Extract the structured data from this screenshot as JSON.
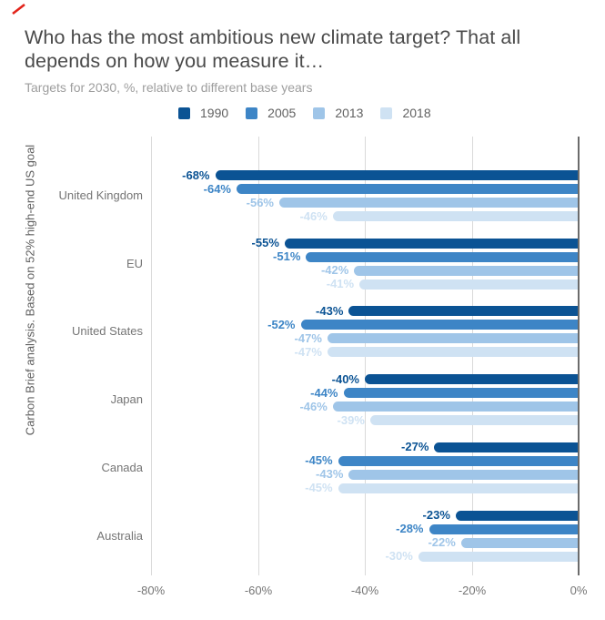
{
  "brand": {
    "slash_icon_color": "#e2231a"
  },
  "chart_data": {
    "type": "bar",
    "orientation": "horizontal",
    "title": "Who has the most ambitious new climate target? That all depends on how you measure it…",
    "subtitle": "Targets for 2030, %, relative to different base years",
    "ylabel": "Carbon Brief analysis. Based on 52% high-end US goal",
    "xlabel": "",
    "categories": [
      "United Kingdom",
      "EU",
      "United States",
      "Japan",
      "Canada",
      "Australia"
    ],
    "series": [
      {
        "name": "1990",
        "color": "#0b5394",
        "values": [
          -68,
          -55,
          -43,
          -40,
          -27,
          -23
        ]
      },
      {
        "name": "2005",
        "color": "#3d85c6",
        "values": [
          -64,
          -51,
          -52,
          -44,
          -45,
          -28
        ]
      },
      {
        "name": "2013",
        "color": "#9fc5e8",
        "values": [
          -56,
          -42,
          -47,
          -46,
          -43,
          -22
        ]
      },
      {
        "name": "2018",
        "color": "#cfe2f3",
        "values": [
          -46,
          -41,
          -47,
          -39,
          -45,
          -30
        ]
      }
    ],
    "value_label_format": "{v}%",
    "xlim": [
      -80,
      0
    ],
    "x_tick_values": [
      -80,
      -60,
      -40,
      -20,
      0
    ],
    "x_tick_labels": [
      "-80%",
      "-60%",
      "-40%",
      "-20%",
      "0%"
    ],
    "legend_position": "top",
    "grid": true,
    "colors": {
      "gridline": "#dadada",
      "zero_axis": "#6b6b6b",
      "tick_text": "#757575",
      "category_text": "#757575",
      "title_text": "#4a4a4a",
      "subtitle_text": "#9e9e9e",
      "legend_text": "#616161",
      "ylabel_text": "#5f5f5f"
    }
  }
}
